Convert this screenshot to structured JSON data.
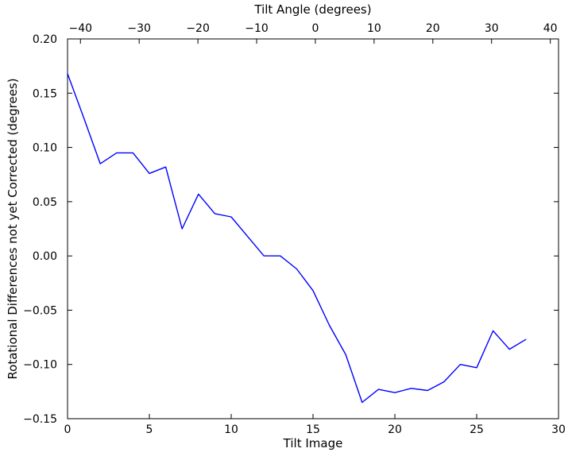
{
  "figure": {
    "top_axis_label": "Tilt Angle (degrees)",
    "bottom_axis_label": "Tilt Image",
    "y_axis_label": "Rotational Differences not yet Corrected (degrees)"
  },
  "chart_data": {
    "type": "line",
    "title": "Tilt Angle (degrees)",
    "xlabel": "Tilt Image",
    "ylabel": "Rotational Differences not yet Corrected (degrees)",
    "grid": false,
    "legend": null,
    "line_color": "#0000ff",
    "frame_color": "#000000",
    "background_color": "#ffffff",
    "bottom_axis": {
      "min": 0,
      "max": 30,
      "tick_values": [
        0,
        5,
        10,
        15,
        20,
        25,
        30
      ],
      "tick_labels": [
        "0",
        "5",
        "10",
        "15",
        "20",
        "25",
        "30"
      ]
    },
    "top_axis": {
      "min": -42.2,
      "max": 41.4,
      "tick_values": [
        -40,
        -30,
        -20,
        -10,
        0,
        10,
        20,
        30,
        40
      ],
      "tick_labels": [
        "−40",
        "−30",
        "−20",
        "−10",
        "0",
        "10",
        "20",
        "30",
        "40"
      ]
    },
    "y_axis": {
      "min": -0.15,
      "max": 0.2,
      "tick_values": [
        0.2,
        0.15,
        0.1,
        0.05,
        0.0,
        -0.05,
        -0.1,
        -0.15
      ],
      "tick_labels": [
        "0.20",
        "0.15",
        "0.10",
        "0.05",
        "0.00",
        "−0.05",
        "−0.10",
        "−0.15"
      ]
    },
    "series": [
      {
        "name": "rotational-differences",
        "x": [
          0,
          1,
          2,
          3,
          4,
          5,
          6,
          7,
          8,
          9,
          10,
          11,
          12,
          13,
          14,
          15,
          16,
          17,
          18,
          19,
          20,
          21,
          22,
          23,
          24,
          25,
          26,
          27,
          28
        ],
        "y": [
          0.168,
          0.127,
          0.085,
          0.095,
          0.095,
          0.076,
          0.082,
          0.025,
          0.057,
          0.039,
          0.036,
          0.018,
          0.0,
          0.0,
          -0.012,
          -0.032,
          -0.064,
          -0.091,
          -0.135,
          -0.123,
          -0.126,
          -0.122,
          -0.124,
          -0.116,
          -0.1,
          -0.103,
          -0.069,
          -0.086,
          -0.077
        ]
      }
    ]
  }
}
